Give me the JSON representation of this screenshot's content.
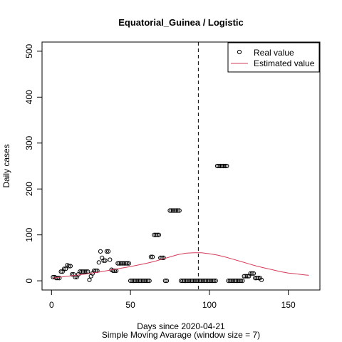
{
  "chart_data": {
    "type": "scatter",
    "title": "Equatorial_Guinea / Logistic",
    "xlabel": "Days since 2020-04-21",
    "subtitle": "Simple Moving Avarage (window size = 7)",
    "ylabel": "Daily cases",
    "xlim": [
      -6,
      170
    ],
    "ylim": [
      -20,
      520
    ],
    "xticks": [
      0,
      50,
      100,
      150
    ],
    "yticks": [
      0,
      100,
      200,
      300,
      400,
      500
    ],
    "vline_x": 93,
    "legend": {
      "position": "top-right",
      "entries": [
        "Real value",
        "Estimated value"
      ]
    },
    "colors": {
      "real": "#000000",
      "estimated": "#d23c5a",
      "vline": "#000000"
    },
    "series": [
      {
        "name": "Real value",
        "style": "points",
        "points": [
          [
            1,
            8
          ],
          [
            2,
            8
          ],
          [
            3,
            6
          ],
          [
            4,
            6
          ],
          [
            5,
            6
          ],
          [
            6,
            20
          ],
          [
            7,
            20
          ],
          [
            8,
            26
          ],
          [
            9,
            26
          ],
          [
            10,
            34
          ],
          [
            11,
            32
          ],
          [
            12,
            32
          ],
          [
            13,
            14
          ],
          [
            14,
            14
          ],
          [
            15,
            8
          ],
          [
            16,
            8
          ],
          [
            17,
            14
          ],
          [
            18,
            20
          ],
          [
            19,
            20
          ],
          [
            20,
            20
          ],
          [
            21,
            20
          ],
          [
            22,
            20
          ],
          [
            23,
            20
          ],
          [
            24,
            2
          ],
          [
            25,
            10
          ],
          [
            26,
            16
          ],
          [
            27,
            22
          ],
          [
            28,
            22
          ],
          [
            29,
            22
          ],
          [
            30,
            40
          ],
          [
            31,
            64
          ],
          [
            32,
            50
          ],
          [
            33,
            44
          ],
          [
            34,
            44
          ],
          [
            35,
            64
          ],
          [
            36,
            64
          ],
          [
            37,
            46
          ],
          [
            38,
            24
          ],
          [
            39,
            22
          ],
          [
            40,
            22
          ],
          [
            41,
            22
          ],
          [
            42,
            38
          ],
          [
            43,
            38
          ],
          [
            44,
            38
          ],
          [
            45,
            38
          ],
          [
            46,
            38
          ],
          [
            47,
            38
          ],
          [
            48,
            38
          ],
          [
            49,
            38
          ],
          [
            50,
            0
          ],
          [
            51,
            0
          ],
          [
            52,
            0
          ],
          [
            53,
            0
          ],
          [
            54,
            0
          ],
          [
            55,
            0
          ],
          [
            56,
            0
          ],
          [
            57,
            0
          ],
          [
            58,
            0
          ],
          [
            59,
            0
          ],
          [
            60,
            0
          ],
          [
            61,
            0
          ],
          [
            62,
            0
          ],
          [
            63,
            52
          ],
          [
            64,
            52
          ],
          [
            65,
            100
          ],
          [
            66,
            100
          ],
          [
            67,
            100
          ],
          [
            68,
            100
          ],
          [
            69,
            50
          ],
          [
            70,
            50
          ],
          [
            71,
            50
          ],
          [
            72,
            0
          ],
          [
            73,
            0
          ],
          [
            75,
            153
          ],
          [
            76,
            153
          ],
          [
            77,
            153
          ],
          [
            78,
            153
          ],
          [
            79,
            153
          ],
          [
            80,
            153
          ],
          [
            81,
            153
          ],
          [
            82,
            0
          ],
          [
            83,
            0
          ],
          [
            84,
            0
          ],
          [
            85,
            0
          ],
          [
            86,
            0
          ],
          [
            87,
            0
          ],
          [
            88,
            0
          ],
          [
            89,
            0
          ],
          [
            90,
            0
          ],
          [
            91,
            0
          ],
          [
            92,
            0
          ],
          [
            93,
            0
          ],
          [
            94,
            0
          ],
          [
            95,
            0
          ],
          [
            96,
            0
          ],
          [
            97,
            0
          ],
          [
            98,
            0
          ],
          [
            99,
            0
          ],
          [
            100,
            0
          ],
          [
            101,
            0
          ],
          [
            102,
            0
          ],
          [
            103,
            0
          ],
          [
            104,
            0
          ],
          [
            105,
            250
          ],
          [
            106,
            250
          ],
          [
            107,
            250
          ],
          [
            108,
            250
          ],
          [
            109,
            250
          ],
          [
            110,
            250
          ],
          [
            111,
            250
          ],
          [
            112,
            0
          ],
          [
            113,
            0
          ],
          [
            114,
            0
          ],
          [
            115,
            0
          ],
          [
            116,
            0
          ],
          [
            117,
            0
          ],
          [
            118,
            0
          ],
          [
            119,
            0
          ],
          [
            120,
            0
          ],
          [
            121,
            0
          ],
          [
            122,
            10
          ],
          [
            123,
            10
          ],
          [
            124,
            10
          ],
          [
            125,
            10
          ],
          [
            126,
            16
          ],
          [
            127,
            16
          ],
          [
            128,
            16
          ],
          [
            129,
            6
          ],
          [
            130,
            6
          ],
          [
            131,
            6
          ],
          [
            132,
            6
          ],
          [
            133,
            2
          ]
        ]
      },
      {
        "name": "Estimated value",
        "style": "line",
        "points": [
          [
            1,
            6
          ],
          [
            10,
            10
          ],
          [
            20,
            14
          ],
          [
            30,
            19
          ],
          [
            40,
            25
          ],
          [
            50,
            31
          ],
          [
            60,
            38
          ],
          [
            65,
            42
          ],
          [
            70,
            47
          ],
          [
            75,
            52
          ],
          [
            80,
            57
          ],
          [
            85,
            60
          ],
          [
            90,
            61
          ],
          [
            93,
            61
          ],
          [
            95,
            61
          ],
          [
            100,
            59
          ],
          [
            105,
            56
          ],
          [
            110,
            52
          ],
          [
            115,
            47
          ],
          [
            120,
            42
          ],
          [
            125,
            37
          ],
          [
            130,
            32
          ],
          [
            135,
            28
          ],
          [
            140,
            24
          ],
          [
            145,
            20
          ],
          [
            150,
            17
          ],
          [
            155,
            15
          ],
          [
            160,
            13
          ],
          [
            163,
            12
          ]
        ]
      }
    ]
  }
}
